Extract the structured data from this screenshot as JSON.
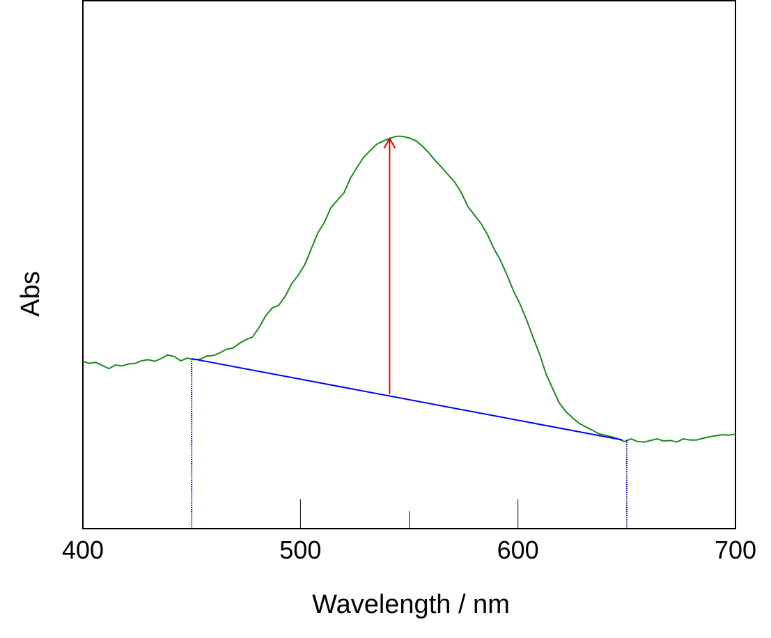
{
  "chart_data": {
    "type": "line",
    "title": "",
    "xlabel": "Wavelength / nm",
    "ylabel": "Abs",
    "xlim": [
      400,
      700
    ],
    "ylim": [
      0,
      1
    ],
    "x_ticks": [
      400,
      500,
      600,
      700
    ],
    "x_minor_ticks": [
      550
    ],
    "y_ticks": [],
    "grid": false,
    "series": [
      {
        "color": "#1a8a1a",
        "x": [
          400,
          403,
          406,
          409,
          412,
          415,
          418,
          421,
          424,
          427,
          430,
          433,
          436,
          439,
          442,
          445,
          448,
          451,
          454,
          457,
          460,
          463,
          466,
          469,
          472,
          475,
          478,
          481,
          484,
          487,
          490,
          493,
          496,
          499,
          502,
          505,
          508,
          511,
          514,
          517,
          520,
          523,
          526,
          529,
          532,
          535,
          538,
          541,
          544,
          547,
          550,
          553,
          556,
          559,
          562,
          565,
          568,
          571,
          574,
          577,
          580,
          583,
          586,
          589,
          592,
          595,
          598,
          601,
          604,
          607,
          610,
          613,
          616,
          619,
          622,
          625,
          628,
          631,
          634,
          637,
          640,
          643,
          646,
          649,
          652,
          655,
          658,
          661,
          664,
          667,
          670,
          673,
          676,
          679,
          682,
          685,
          688,
          691,
          694,
          697,
          700
        ],
        "y": [
          0.317,
          0.313,
          0.315,
          0.309,
          0.303,
          0.31,
          0.308,
          0.312,
          0.313,
          0.318,
          0.32,
          0.317,
          0.322,
          0.329,
          0.326,
          0.318,
          0.323,
          0.32,
          0.321,
          0.327,
          0.328,
          0.333,
          0.34,
          0.342,
          0.351,
          0.358,
          0.363,
          0.381,
          0.403,
          0.418,
          0.423,
          0.44,
          0.464,
          0.48,
          0.5,
          0.53,
          0.56,
          0.58,
          0.608,
          0.622,
          0.636,
          0.664,
          0.684,
          0.703,
          0.716,
          0.728,
          0.734,
          0.739,
          0.743,
          0.743,
          0.74,
          0.735,
          0.725,
          0.712,
          0.697,
          0.684,
          0.67,
          0.656,
          0.636,
          0.61,
          0.594,
          0.578,
          0.557,
          0.53,
          0.508,
          0.48,
          0.45,
          0.425,
          0.395,
          0.362,
          0.33,
          0.292,
          0.265,
          0.238,
          0.222,
          0.21,
          0.2,
          0.193,
          0.187,
          0.18,
          0.177,
          0.174,
          0.17,
          0.165,
          0.17,
          0.165,
          0.164,
          0.167,
          0.17,
          0.166,
          0.167,
          0.164,
          0.17,
          0.168,
          0.168,
          0.171,
          0.174,
          0.176,
          0.178,
          0.177,
          0.179
        ]
      }
    ],
    "baseline": {
      "color": "#0000ff",
      "start": [
        450,
        0.322
      ],
      "end": [
        648,
        0.168
      ]
    },
    "baseline_markers": [
      450,
      650
    ],
    "arrow": {
      "color": "#e00000",
      "x": 541,
      "y_from": 0.255,
      "y_to": 0.739
    }
  }
}
